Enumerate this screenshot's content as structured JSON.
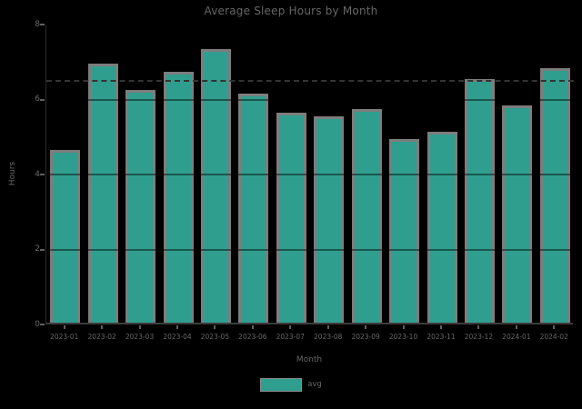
{
  "chart_data": {
    "type": "bar",
    "title": "Average Sleep Hours by Month",
    "xlabel": "Month",
    "ylabel": "Hours",
    "categories": [
      "2023-01",
      "2023-02",
      "2023-03",
      "2023-04",
      "2023-05",
      "2023-06",
      "2023-07",
      "2023-08",
      "2023-09",
      "2023-10",
      "2023-11",
      "2023-12",
      "2024-01",
      "2024-02"
    ],
    "values": [
      4.6,
      6.9,
      6.2,
      6.7,
      7.3,
      6.1,
      5.6,
      5.5,
      5.7,
      4.9,
      5.1,
      6.5,
      5.8,
      6.8
    ],
    "ylim": [
      0,
      8
    ],
    "yticks": [
      0,
      2,
      4,
      6,
      8
    ],
    "grid": true,
    "reference_line": {
      "value": 6.5,
      "style": "dashed",
      "color": "#333333"
    },
    "legend": {
      "position": "lower center",
      "entries": [
        {
          "label": "avg",
          "color": "#2f9e8f"
        }
      ]
    },
    "colors": {
      "bar_fill": "#2f9e8f",
      "bar_edge": "#7d7d7d",
      "text": "#666666",
      "axis_spine": "#3c3c3c",
      "background": "#000000"
    }
  }
}
